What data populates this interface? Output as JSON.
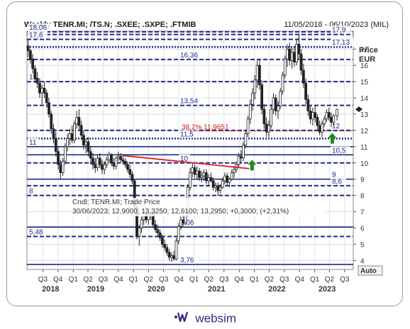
{
  "header": {
    "title": "Weekly TENR.MI; /TS.N; .SXEE; .SXPE; .FTMIB",
    "date_range": "11/05/2018 - 06/10/2023 (MIL)"
  },
  "logo": {
    "text": "websim",
    "icon_name": "websim-logo-icon"
  },
  "chart_data": {
    "type": "candlestick",
    "ylabel": "Price",
    "yunit": "EUR",
    "scale_mode": "Auto",
    "ylim": [
      3.45,
      18.1
    ],
    "xlim": [
      "2018-05-11",
      "2023-10-06"
    ],
    "y_ticks": [
      "4",
      "5",
      "6",
      "7",
      "8",
      "9",
      "10",
      "11",
      "12",
      "13",
      "14",
      "15",
      "16",
      "17"
    ],
    "x_quarters": [
      {
        "label": "Q3",
        "date": "2018-08-15"
      },
      {
        "label": "Q4",
        "date": "2018-11-15"
      },
      {
        "label": "Q1",
        "date": "2019-02-15"
      },
      {
        "label": "Q2",
        "date": "2019-05-15"
      },
      {
        "label": "Q3",
        "date": "2019-08-15"
      },
      {
        "label": "Q4",
        "date": "2019-11-15"
      },
      {
        "label": "Q1",
        "date": "2020-02-15"
      },
      {
        "label": "Q2",
        "date": "2020-05-15"
      },
      {
        "label": "Q3",
        "date": "2020-08-15"
      },
      {
        "label": "Q4",
        "date": "2020-11-15"
      },
      {
        "label": "Q1",
        "date": "2021-02-15"
      },
      {
        "label": "Q2",
        "date": "2021-05-15"
      },
      {
        "label": "Q3",
        "date": "2021-08-15"
      },
      {
        "label": "Q4",
        "date": "2021-11-15"
      },
      {
        "label": "Q1",
        "date": "2022-02-15"
      },
      {
        "label": "Q2",
        "date": "2022-05-15"
      },
      {
        "label": "Q3",
        "date": "2022-08-15"
      },
      {
        "label": "Q4",
        "date": "2022-11-15"
      },
      {
        "label": "Q1",
        "date": "2023-02-15"
      },
      {
        "label": "Q2",
        "date": "2023-05-15"
      },
      {
        "label": "Q3",
        "date": "2023-08-15"
      }
    ],
    "x_years": [
      {
        "label": "2018",
        "date": "2018-10-01"
      },
      {
        "label": "2019",
        "date": "2019-07-01"
      },
      {
        "label": "2020",
        "date": "2020-07-01"
      },
      {
        "label": "2021",
        "date": "2021-07-01"
      },
      {
        "label": "2022",
        "date": "2022-07-01"
      },
      {
        "label": "2023",
        "date": "2023-05-01"
      }
    ],
    "levels": [
      {
        "value": 18.06,
        "label": "18,06",
        "style": "dashed",
        "label_side": "left"
      },
      {
        "value": 17.9,
        "label": "17,9",
        "style": "dashed",
        "label_side": "right"
      },
      {
        "value": 17.6,
        "label": "17,6",
        "style": "dashed",
        "label_side": "left"
      },
      {
        "value": 17.13,
        "label": "17,13",
        "style": "dotted",
        "label_side": "right"
      },
      {
        "value": 16.36,
        "label": "16,36",
        "style": "dashed",
        "label_side": "center"
      },
      {
        "value": 15,
        "label": "15",
        "style": "dashed",
        "label_side": "left"
      },
      {
        "value": 13.54,
        "label": "13,54",
        "style": "dashed",
        "label_side": "center"
      },
      {
        "value": 12,
        "label": "12",
        "style": "dashed",
        "label_side": "right"
      },
      {
        "value": 11.5,
        "label": "11,5",
        "style": "dotted",
        "label_side": "center"
      },
      {
        "value": 11,
        "label": "11",
        "style": "solid",
        "label_side": "left"
      },
      {
        "value": 10.5,
        "label": "10,5",
        "style": "solid",
        "label_side": "right"
      },
      {
        "value": 10,
        "label": "10",
        "style": "dashed",
        "label_side": "center"
      },
      {
        "value": 9,
        "label": "9",
        "style": "solid",
        "label_side": "right"
      },
      {
        "value": 8.6,
        "label": "8,6",
        "style": "dashed",
        "label_side": "right"
      },
      {
        "value": 8,
        "label": "8",
        "style": "dashed",
        "label_side": "left"
      },
      {
        "value": 6.06,
        "label": "6,06",
        "style": "solid",
        "label_side": "center"
      },
      {
        "value": 5.48,
        "label": "5,48",
        "style": "dashed",
        "label_side": "left"
      },
      {
        "value": 3.76,
        "label": "3,76",
        "style": "solid",
        "label_side": "center"
      }
    ],
    "fibonacci": {
      "label": "38,2% 11,9651",
      "value": 11.9651,
      "color": "#d01a1a"
    },
    "trendline": {
      "start": {
        "date": "2019-12-15",
        "value": 10.45
      },
      "end": {
        "date": "2022-01-15",
        "value": 9.65
      },
      "color": "#e02020"
    },
    "arrows": [
      {
        "date": "2022-02-01",
        "value": 9.8,
        "direction": "up",
        "color": "#1c8a1c"
      },
      {
        "date": "2023-06-01",
        "value": 11.45,
        "direction": "up",
        "color": "#1c8a1c"
      }
    ],
    "last_price_marker": 13.3,
    "legend": {
      "line1": "Cndl; TENR.MI; Trade Price",
      "line2": "30/06/2023; 12,9000; 13,3250; 12,6100; 13,2950; +0,3000; (+2,31%)"
    },
    "candles": [
      [
        "2018-05-18",
        17.2,
        17.6,
        16.5,
        16.9
      ],
      [
        "2018-06-01",
        16.9,
        17.0,
        16.1,
        16.4
      ],
      [
        "2018-06-15",
        16.4,
        16.7,
        15.5,
        15.8
      ],
      [
        "2018-06-29",
        15.8,
        16.0,
        14.9,
        15.2
      ],
      [
        "2018-07-13",
        15.2,
        15.6,
        14.6,
        14.9
      ],
      [
        "2018-07-27",
        14.9,
        15.2,
        14.0,
        14.3
      ],
      [
        "2018-08-10",
        14.3,
        14.8,
        13.6,
        14.6
      ],
      [
        "2018-08-24",
        14.6,
        15.0,
        14.0,
        14.3
      ],
      [
        "2018-09-07",
        14.3,
        14.5,
        13.4,
        13.7
      ],
      [
        "2018-09-21",
        13.7,
        14.0,
        12.8,
        13.0
      ],
      [
        "2018-10-05",
        13.0,
        13.2,
        11.8,
        12.1
      ],
      [
        "2018-10-19",
        12.1,
        12.4,
        11.2,
        11.5
      ],
      [
        "2018-11-02",
        11.5,
        11.9,
        10.4,
        10.7
      ],
      [
        "2018-11-16",
        10.7,
        11.0,
        9.6,
        9.9
      ],
      [
        "2018-11-30",
        9.9,
        10.2,
        9.0,
        9.4
      ],
      [
        "2018-12-14",
        9.4,
        10.3,
        9.2,
        10.1
      ],
      [
        "2018-12-28",
        10.1,
        11.2,
        9.9,
        11.0
      ],
      [
        "2019-01-11",
        11.0,
        11.8,
        10.7,
        11.5
      ],
      [
        "2019-01-25",
        11.5,
        12.1,
        11.1,
        11.8
      ],
      [
        "2019-02-08",
        11.8,
        12.3,
        11.2,
        11.4
      ],
      [
        "2019-02-22",
        11.4,
        12.6,
        11.2,
        12.4
      ],
      [
        "2019-03-08",
        12.4,
        13.2,
        12.1,
        12.8
      ],
      [
        "2019-03-22",
        12.8,
        13.3,
        12.0,
        12.3
      ],
      [
        "2019-04-05",
        12.3,
        12.6,
        11.4,
        11.7
      ],
      [
        "2019-04-19",
        11.7,
        12.0,
        10.8,
        11.1
      ],
      [
        "2019-05-03",
        11.1,
        11.5,
        10.6,
        11.3
      ],
      [
        "2019-05-17",
        11.3,
        11.6,
        10.4,
        10.7
      ],
      [
        "2019-05-31",
        10.7,
        11.0,
        9.9,
        10.3
      ],
      [
        "2019-06-14",
        10.3,
        10.6,
        9.6,
        9.9
      ],
      [
        "2019-06-28",
        9.9,
        10.3,
        9.4,
        9.7
      ],
      [
        "2019-07-12",
        9.7,
        10.5,
        9.5,
        10.3
      ],
      [
        "2019-07-26",
        10.3,
        10.6,
        9.7,
        9.9
      ],
      [
        "2019-08-09",
        9.9,
        10.2,
        9.3,
        9.6
      ],
      [
        "2019-08-23",
        9.6,
        10.1,
        9.3,
        9.9
      ],
      [
        "2019-09-06",
        9.9,
        10.4,
        9.7,
        10.2
      ],
      [
        "2019-09-20",
        10.2,
        10.7,
        10.0,
        10.5
      ],
      [
        "2019-10-04",
        10.5,
        10.6,
        9.8,
        10.0
      ],
      [
        "2019-10-18",
        10.0,
        10.3,
        9.6,
        9.8
      ],
      [
        "2019-11-01",
        9.8,
        10.4,
        9.6,
        10.3
      ],
      [
        "2019-11-15",
        10.3,
        10.7,
        10.1,
        10.4
      ],
      [
        "2019-11-29",
        10.4,
        10.6,
        10.0,
        10.2
      ],
      [
        "2019-12-13",
        10.2,
        10.5,
        9.9,
        10.1
      ],
      [
        "2019-12-27",
        10.1,
        10.3,
        9.7,
        9.9
      ],
      [
        "2020-01-10",
        9.9,
        10.1,
        9.4,
        9.6
      ],
      [
        "2020-01-24",
        9.6,
        9.9,
        9.1,
        9.3
      ],
      [
        "2020-02-07",
        9.3,
        9.5,
        8.7,
        8.9
      ],
      [
        "2020-02-21",
        8.9,
        9.0,
        7.0,
        7.3
      ],
      [
        "2020-03-06",
        7.3,
        7.4,
        5.3,
        5.5
      ],
      [
        "2020-03-20",
        5.5,
        6.2,
        4.9,
        6.0
      ],
      [
        "2020-04-03",
        6.0,
        6.7,
        5.7,
        6.5
      ],
      [
        "2020-04-17",
        6.5,
        7.2,
        6.2,
        6.9
      ],
      [
        "2020-05-01",
        6.9,
        7.3,
        6.3,
        6.5
      ],
      [
        "2020-05-15",
        6.5,
        7.0,
        6.2,
        6.8
      ],
      [
        "2020-05-29",
        6.8,
        7.2,
        6.5,
        6.9
      ],
      [
        "2020-06-12",
        6.9,
        7.0,
        6.0,
        6.2
      ],
      [
        "2020-06-26",
        6.2,
        6.5,
        5.7,
        5.9
      ],
      [
        "2020-07-10",
        5.9,
        6.2,
        5.5,
        5.7
      ],
      [
        "2020-07-24",
        5.7,
        5.9,
        5.2,
        5.4
      ],
      [
        "2020-08-07",
        5.4,
        5.6,
        4.8,
        5.0
      ],
      [
        "2020-08-21",
        5.0,
        5.3,
        4.6,
        4.8
      ],
      [
        "2020-09-04",
        4.8,
        5.0,
        4.3,
        4.5
      ],
      [
        "2020-09-18",
        4.5,
        4.7,
        4.0,
        4.2
      ],
      [
        "2020-10-02",
        4.2,
        4.5,
        3.9,
        4.3
      ],
      [
        "2020-10-16",
        4.3,
        4.6,
        4.0,
        4.1
      ],
      [
        "2020-10-30",
        4.1,
        5.4,
        4.0,
        5.2
      ],
      [
        "2020-11-13",
        5.2,
        6.3,
        5.0,
        6.1
      ],
      [
        "2020-11-27",
        6.1,
        6.8,
        5.9,
        6.5
      ],
      [
        "2020-12-11",
        6.5,
        6.9,
        6.1,
        6.3
      ],
      [
        "2020-12-25",
        6.3,
        6.9,
        6.2,
        6.8
      ],
      [
        "2021-01-08",
        6.8,
        8.7,
        6.7,
        8.5
      ],
      [
        "2021-01-22",
        8.5,
        9.7,
        8.3,
        9.4
      ],
      [
        "2021-02-05",
        9.4,
        10.0,
        9.1,
        9.7
      ],
      [
        "2021-02-19",
        9.7,
        9.9,
        9.1,
        9.3
      ],
      [
        "2021-03-05",
        9.3,
        9.8,
        9.0,
        9.5
      ],
      [
        "2021-03-19",
        9.5,
        9.7,
        8.9,
        9.1
      ],
      [
        "2021-04-02",
        9.1,
        9.5,
        8.8,
        9.2
      ],
      [
        "2021-04-16",
        9.2,
        9.6,
        8.9,
        9.4
      ],
      [
        "2021-04-30",
        9.4,
        9.6,
        8.7,
        8.9
      ],
      [
        "2021-05-14",
        8.9,
        9.3,
        8.6,
        9.1
      ],
      [
        "2021-05-28",
        9.1,
        9.4,
        8.8,
        8.9
      ],
      [
        "2021-06-11",
        8.9,
        9.1,
        8.3,
        8.5
      ],
      [
        "2021-06-25",
        8.5,
        8.8,
        8.2,
        8.6
      ],
      [
        "2021-07-09",
        8.6,
        8.8,
        8.0,
        8.3
      ],
      [
        "2021-07-23",
        8.3,
        8.7,
        8.1,
        8.5
      ],
      [
        "2021-08-06",
        8.5,
        9.1,
        8.4,
        8.9
      ],
      [
        "2021-08-20",
        8.9,
        9.4,
        8.7,
        9.2
      ],
      [
        "2021-09-03",
        9.2,
        9.4,
        8.6,
        8.8
      ],
      [
        "2021-09-17",
        8.8,
        9.1,
        8.5,
        9.0
      ],
      [
        "2021-10-01",
        9.0,
        9.6,
        8.9,
        9.4
      ],
      [
        "2021-10-15",
        9.4,
        9.8,
        9.1,
        9.6
      ],
      [
        "2021-10-29",
        9.6,
        10.1,
        9.4,
        9.9
      ],
      [
        "2021-11-12",
        9.9,
        10.6,
        9.7,
        10.4
      ],
      [
        "2021-11-26",
        10.4,
        10.8,
        10.0,
        10.3
      ],
      [
        "2021-12-10",
        10.3,
        11.3,
        10.1,
        11.1
      ],
      [
        "2021-12-24",
        11.1,
        12.0,
        10.9,
        11.8
      ],
      [
        "2022-01-07",
        11.8,
        12.9,
        11.6,
        12.7
      ],
      [
        "2022-01-21",
        12.7,
        13.9,
        12.4,
        13.6
      ],
      [
        "2022-02-04",
        13.6,
        14.6,
        13.2,
        14.3
      ],
      [
        "2022-02-18",
        14.3,
        15.4,
        13.9,
        15.1
      ],
      [
        "2022-03-04",
        15.1,
        16.3,
        14.6,
        16.0
      ],
      [
        "2022-03-18",
        16.0,
        16.4,
        14.5,
        14.8
      ],
      [
        "2022-04-01",
        14.8,
        15.1,
        13.0,
        13.3
      ],
      [
        "2022-04-15",
        13.3,
        13.6,
        12.1,
        12.4
      ],
      [
        "2022-04-29",
        12.4,
        12.8,
        11.6,
        11.9
      ],
      [
        "2022-05-13",
        11.9,
        12.6,
        11.6,
        12.3
      ],
      [
        "2022-05-27",
        12.3,
        13.6,
        12.1,
        13.3
      ],
      [
        "2022-06-10",
        13.3,
        14.3,
        13.0,
        14.0
      ],
      [
        "2022-06-24",
        14.0,
        14.2,
        12.9,
        13.2
      ],
      [
        "2022-07-08",
        13.2,
        13.8,
        12.7,
        13.5
      ],
      [
        "2022-07-22",
        13.5,
        14.6,
        13.3,
        14.4
      ],
      [
        "2022-08-05",
        14.4,
        15.6,
        14.2,
        15.4
      ],
      [
        "2022-08-19",
        15.4,
        16.6,
        15.2,
        16.4
      ],
      [
        "2022-09-02",
        16.4,
        17.3,
        15.9,
        17.0
      ],
      [
        "2022-09-16",
        17.0,
        17.4,
        16.0,
        16.3
      ],
      [
        "2022-09-30",
        16.3,
        17.1,
        15.8,
        16.8
      ],
      [
        "2022-10-14",
        16.8,
        17.2,
        15.9,
        16.2
      ],
      [
        "2022-10-28",
        16.2,
        17.6,
        16.0,
        17.3
      ],
      [
        "2022-11-11",
        17.3,
        17.9,
        16.4,
        16.7
      ],
      [
        "2022-11-25",
        16.7,
        17.0,
        15.4,
        15.7
      ],
      [
        "2022-12-09",
        15.7,
        16.1,
        14.6,
        14.9
      ],
      [
        "2022-12-23",
        14.9,
        15.2,
        13.6,
        13.9
      ],
      [
        "2023-01-06",
        13.9,
        14.2,
        12.9,
        13.2
      ],
      [
        "2023-01-20",
        13.2,
        13.5,
        12.4,
        12.7
      ],
      [
        "2023-02-03",
        12.7,
        13.4,
        12.3,
        13.1
      ],
      [
        "2023-02-17",
        13.1,
        13.5,
        12.5,
        12.8
      ],
      [
        "2023-03-03",
        12.8,
        13.0,
        12.0,
        12.3
      ],
      [
        "2023-03-17",
        12.3,
        12.6,
        11.7,
        11.9
      ],
      [
        "2023-03-31",
        11.9,
        12.6,
        11.6,
        12.4
      ],
      [
        "2023-04-14",
        12.4,
        12.9,
        12.2,
        12.7
      ],
      [
        "2023-04-28",
        12.7,
        13.3,
        12.5,
        13.1
      ],
      [
        "2023-05-12",
        13.1,
        13.4,
        12.6,
        12.8
      ],
      [
        "2023-05-26",
        12.8,
        13.1,
        12.2,
        12.5
      ],
      [
        "2023-06-09",
        12.5,
        13.0,
        12.3,
        12.9
      ],
      [
        "2023-06-30",
        12.9,
        13.325,
        12.61,
        13.295
      ]
    ]
  }
}
